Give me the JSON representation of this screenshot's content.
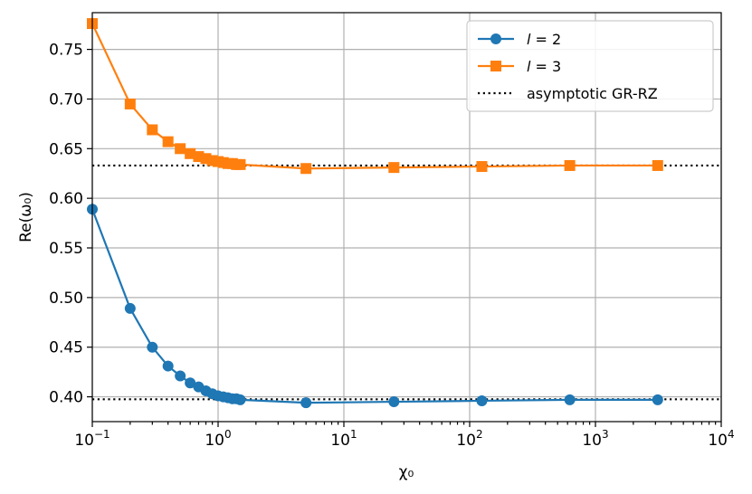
{
  "chart_data": {
    "type": "line",
    "xscale": "log",
    "xlim": [
      0.1,
      10000
    ],
    "ylim": [
      0.375,
      0.787
    ],
    "xlabel": "χ₀",
    "ylabel": "Re(ω₀)",
    "grid": true,
    "legend_position": "top-right",
    "x_ticks": [
      {
        "value": 0.1,
        "base": "10",
        "exp": "−1"
      },
      {
        "value": 1,
        "base": "10",
        "exp": "0"
      },
      {
        "value": 10,
        "base": "10",
        "exp": "1"
      },
      {
        "value": 100,
        "base": "10",
        "exp": "2"
      },
      {
        "value": 1000,
        "base": "10",
        "exp": "3"
      },
      {
        "value": 10000,
        "base": "10",
        "exp": "4"
      }
    ],
    "y_ticks": [
      {
        "value": 0.4,
        "label": "0.40"
      },
      {
        "value": 0.45,
        "label": "0.45"
      },
      {
        "value": 0.5,
        "label": "0.50"
      },
      {
        "value": 0.55,
        "label": "0.55"
      },
      {
        "value": 0.6,
        "label": "0.60"
      },
      {
        "value": 0.65,
        "label": "0.65"
      },
      {
        "value": 0.7,
        "label": "0.70"
      },
      {
        "value": 0.75,
        "label": "0.75"
      }
    ],
    "series": [
      {
        "name": "l = 2",
        "legend_var": "l",
        "legend_rest": " = 2",
        "color": "#1f77b4",
        "marker": "circle",
        "x": [
          0.1,
          0.2,
          0.3,
          0.4,
          0.5,
          0.6,
          0.7,
          0.8,
          0.9,
          1.0,
          1.1,
          1.2,
          1.3,
          1.4,
          1.5,
          5,
          25,
          125,
          625,
          3125
        ],
        "y": [
          0.589,
          0.489,
          0.45,
          0.431,
          0.421,
          0.414,
          0.41,
          0.406,
          0.403,
          0.401,
          0.4,
          0.399,
          0.398,
          0.398,
          0.397,
          0.394,
          0.395,
          0.396,
          0.397,
          0.397
        ]
      },
      {
        "name": "l = 3",
        "legend_var": "l",
        "legend_rest": " = 3",
        "color": "#ff7f0e",
        "marker": "square",
        "x": [
          0.1,
          0.2,
          0.3,
          0.4,
          0.5,
          0.6,
          0.7,
          0.8,
          0.9,
          1.0,
          1.1,
          1.2,
          1.3,
          1.4,
          1.5,
          5,
          25,
          125,
          625,
          3125
        ],
        "y": [
          0.776,
          0.695,
          0.669,
          0.657,
          0.65,
          0.645,
          0.642,
          0.64,
          0.638,
          0.637,
          0.636,
          0.635,
          0.635,
          0.634,
          0.634,
          0.63,
          0.631,
          0.632,
          0.633,
          0.633
        ]
      }
    ],
    "reference_lines": [
      {
        "name": "asymptotic GR-RZ",
        "style": "dotted",
        "color": "#000000",
        "y": 0.3975
      },
      {
        "name": "",
        "style": "dotted",
        "color": "#000000",
        "y": 0.633
      }
    ],
    "legend": [
      {
        "label": "l = 2",
        "var": "l",
        "rest": " = 2",
        "color": "#1f77b4",
        "marker": "circle"
      },
      {
        "label": "l = 3",
        "var": "l",
        "rest": " = 3",
        "color": "#ff7f0e",
        "marker": "square"
      },
      {
        "label": "asymptotic GR-RZ",
        "var": "",
        "rest": "asymptotic GR-RZ",
        "color": "#000000",
        "marker": "dotted"
      }
    ]
  }
}
